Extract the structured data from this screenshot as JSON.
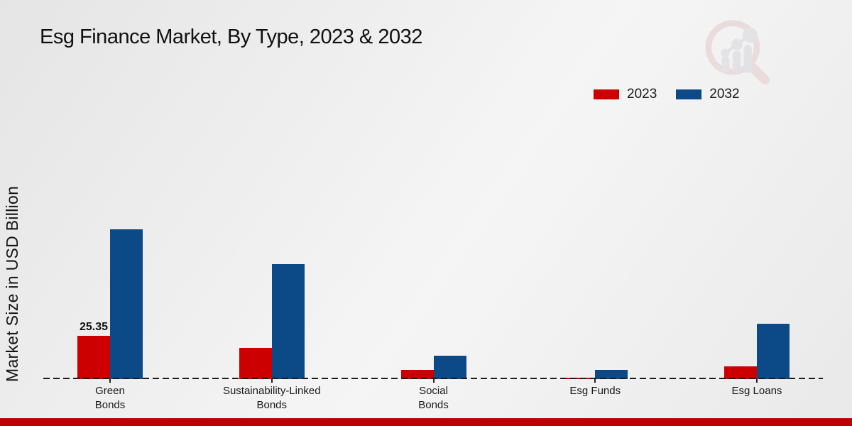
{
  "title": "Esg Finance Market, By Type, 2023 & 2032",
  "y_axis_label": "Market Size in USD Billion",
  "watermark_icon": "magnifier-bar-chart-logo",
  "colors": {
    "series_2023": "#cc0000",
    "series_2032": "#0b4a87",
    "footer_band": "#bd0000",
    "axis_dash": "#1b1b1b"
  },
  "legend": {
    "items": [
      {
        "label": "2023",
        "color": "#cc0000"
      },
      {
        "label": "2032",
        "color": "#0b4a87"
      }
    ]
  },
  "chart_data": {
    "type": "bar",
    "title": "Esg Finance Market, By Type, 2023 & 2032",
    "xlabel": "",
    "ylabel": "Market Size in USD Billion",
    "categories": [
      "Green Bonds",
      "Sustainability-Linked Bonds",
      "Social Bonds",
      "Esg Funds",
      "Esg Loans"
    ],
    "category_lines": [
      [
        "Green",
        "Bonds"
      ],
      [
        "Sustainability-Linked",
        "Bonds"
      ],
      [
        "Social",
        "Bonds"
      ],
      [
        "Esg Funds"
      ],
      [
        "Esg Loans"
      ]
    ],
    "series": [
      {
        "name": "2023",
        "color": "#cc0000",
        "values": [
          25.35,
          18.3,
          5.2,
          1.0,
          7.3
        ]
      },
      {
        "name": "2032",
        "color": "#0b4a87",
        "values": [
          86.9,
          66.9,
          13.5,
          5.4,
          32.2
        ]
      }
    ],
    "value_labels": [
      {
        "series_index": 0,
        "category_index": 0,
        "text": "25.35"
      }
    ],
    "ylim": [
      0,
      95
    ],
    "grid": false,
    "legend_position": "top-right",
    "baseline_style": "dashed"
  }
}
